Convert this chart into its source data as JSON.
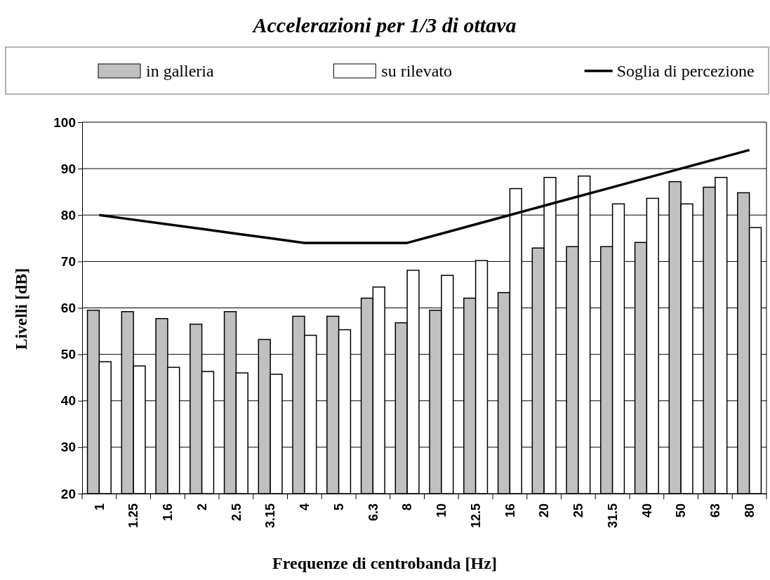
{
  "chart_data": {
    "type": "bar",
    "title": "Accelerazioni per 1/3 di ottava",
    "xlabel": "Frequenze di centrobanda  [Hz]",
    "ylabel": "Livelli  [dB]",
    "categories": [
      "1",
      "1.25",
      "1.6",
      "2",
      "2.5",
      "3.15",
      "4",
      "5",
      "6.3",
      "8",
      "10",
      "12.5",
      "16",
      "20",
      "25",
      "31.5",
      "40",
      "50",
      "63",
      "80"
    ],
    "series": [
      {
        "name": "in galleria",
        "color": "#c0c0c0",
        "values": [
          59.5,
          59.2,
          57.7,
          56.5,
          59.2,
          53.2,
          58.2,
          58.2,
          62.1,
          56.8,
          59.5,
          62.1,
          63.3,
          72.9,
          73.2,
          73.2,
          74.1,
          87.2,
          86,
          84.8
        ]
      },
      {
        "name": "su rilevato",
        "color": "#ffffff",
        "values": [
          48.4,
          47.5,
          47.2,
          46.3,
          46,
          45.7,
          54.1,
          55.3,
          64.5,
          68.1,
          67,
          70.2,
          85.7,
          88.1,
          88.4,
          82.4,
          83.6,
          82.4,
          88.1,
          77.3
        ]
      },
      {
        "name": "Soglia di percezione",
        "type": "line",
        "color": "#000000",
        "values": [
          80,
          79,
          78,
          77,
          76,
          75,
          74,
          74,
          74,
          74,
          76,
          78,
          80,
          82,
          84,
          86,
          88,
          90,
          92,
          94
        ]
      }
    ],
    "ylim": [
      20,
      100
    ],
    "yticks": [
      20,
      30,
      40,
      50,
      60,
      70,
      80,
      90,
      100
    ],
    "grid": "y",
    "legend": "top",
    "marker": "none",
    "line_style": "solid"
  }
}
